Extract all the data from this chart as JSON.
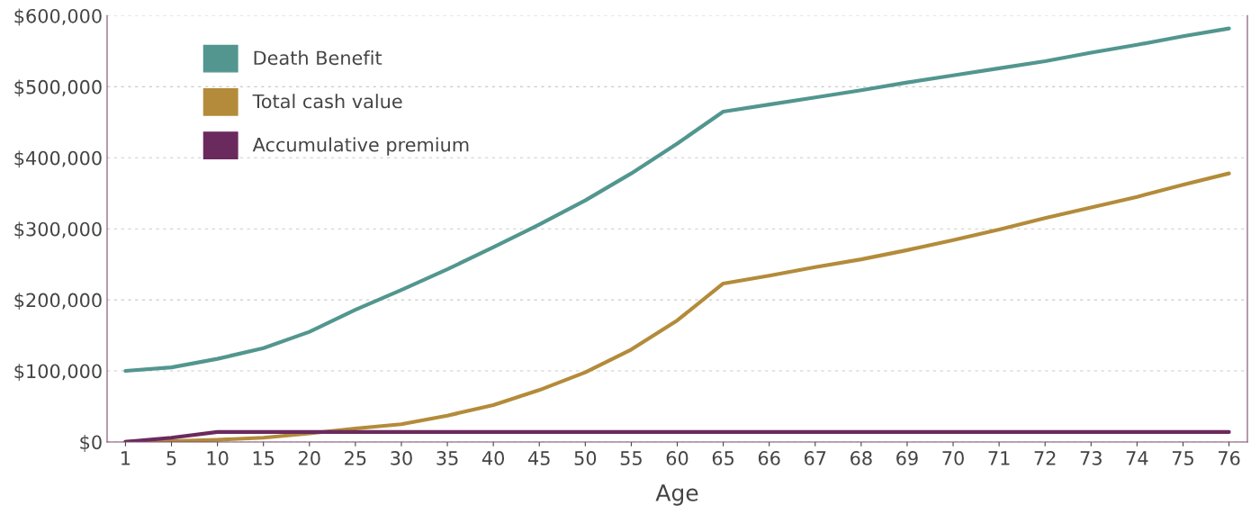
{
  "chart_data": {
    "type": "line",
    "xlabel": "Age",
    "categories": [
      "1",
      "5",
      "10",
      "15",
      "20",
      "25",
      "30",
      "35",
      "40",
      "45",
      "50",
      "55",
      "60",
      "65",
      "66",
      "67",
      "68",
      "69",
      "70",
      "71",
      "72",
      "73",
      "74",
      "75",
      "76"
    ],
    "series": [
      {
        "name": "Death Benefit",
        "color": "#52968f",
        "values": [
          100000,
          105000,
          117000,
          132000,
          155000,
          186000,
          214000,
          243000,
          274000,
          306000,
          340000,
          378000,
          420000,
          465000,
          475000,
          485000,
          495000,
          506000,
          516000,
          526000,
          536000,
          548000,
          559000,
          571000,
          582000
        ]
      },
      {
        "name": "Total cash value",
        "color": "#b38b3a",
        "values": [
          0,
          1000,
          3000,
          6000,
          12000,
          19000,
          25000,
          37000,
          52000,
          73000,
          98000,
          130000,
          171000,
          223000,
          234000,
          246000,
          257000,
          270000,
          284000,
          299000,
          315000,
          330000,
          345000,
          362000,
          378000
        ]
      },
      {
        "name": "Accumulative premium",
        "color": "#6b2a5e",
        "values": [
          0,
          6000,
          14000,
          14000,
          14000,
          14000,
          14000,
          14000,
          14000,
          14000,
          14000,
          14000,
          14000,
          14000,
          14000,
          14000,
          14000,
          14000,
          14000,
          14000,
          14000,
          14000,
          14000,
          14000,
          14000
        ]
      }
    ],
    "ylim": [
      0,
      600000
    ],
    "yticks": [
      {
        "value": 0,
        "label": "$0"
      },
      {
        "value": 100000,
        "label": "$100,000"
      },
      {
        "value": 200000,
        "label": "$200,000"
      },
      {
        "value": 300000,
        "label": "$300,000"
      },
      {
        "value": 400000,
        "label": "$400,000"
      },
      {
        "value": 500000,
        "label": "$500,000"
      },
      {
        "value": 600000,
        "label": "$600,000"
      }
    ],
    "grid": "y",
    "legend": "top left",
    "marker": "none",
    "line_style": "solid"
  }
}
